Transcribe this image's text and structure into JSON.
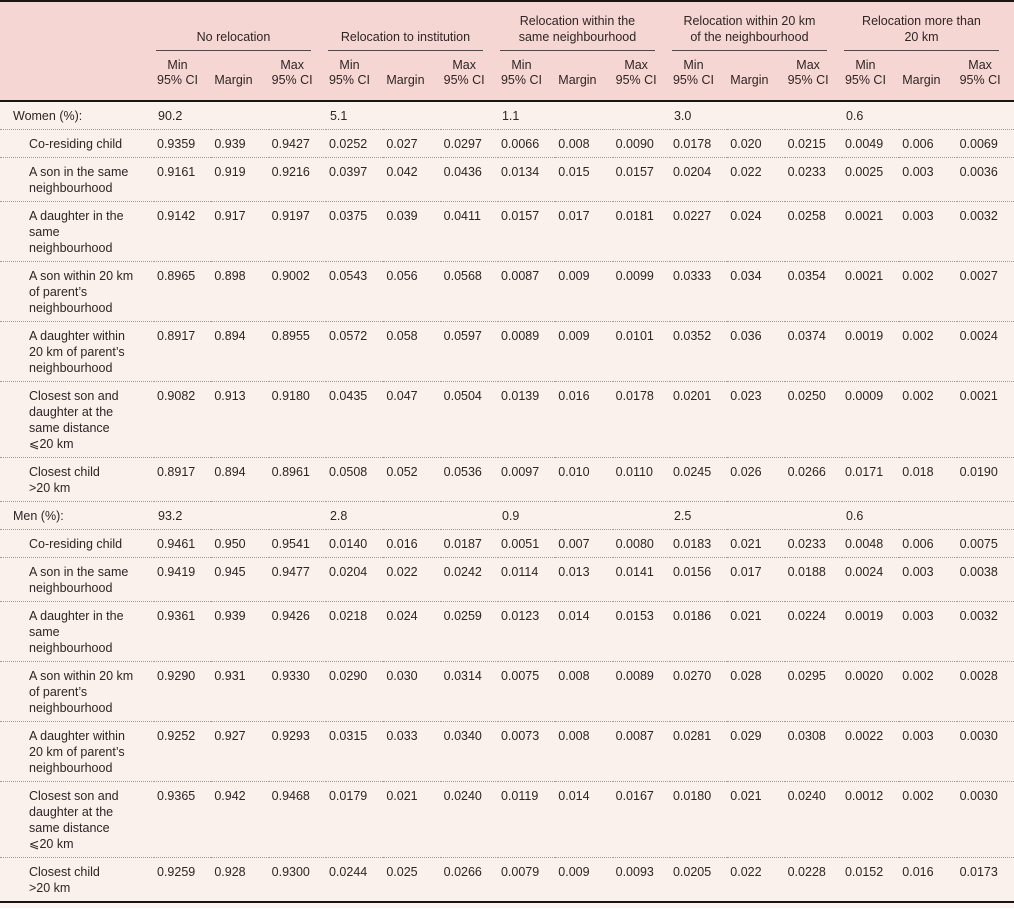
{
  "colors": {
    "header_background": "#f5d6d3",
    "body_background": "#faf0ec",
    "rule_black": "#1a1414",
    "group_underline": "#55484a",
    "row_separator_dotted": "#a8968f",
    "text": "#2e2524"
  },
  "table": {
    "column_groups": [
      {
        "label": "No relocation"
      },
      {
        "label": "Relocation to institution"
      },
      {
        "label": "Relocation within the\nsame neighbourhood"
      },
      {
        "label": "Relocation within 20 km\nof the neighbourhood"
      },
      {
        "label": "Relocation more than\n20 km"
      }
    ],
    "sub_columns": [
      {
        "lines": [
          "Min",
          "95% CI"
        ]
      },
      {
        "lines": [
          "Margin"
        ]
      },
      {
        "lines": [
          "Max",
          "95% CI"
        ]
      }
    ],
    "sections": [
      {
        "label": "Women (%):",
        "values": [
          "90.2",
          "5.1",
          "1.1",
          "3.0",
          "0.6"
        ],
        "rows": [
          {
            "label": "Co-residing child",
            "values": [
              "0.9359",
              "0.939",
              "0.9427",
              "0.0252",
              "0.027",
              "0.0297",
              "0.0066",
              "0.008",
              "0.0090",
              "0.0178",
              "0.020",
              "0.0215",
              "0.0049",
              "0.006",
              "0.0069"
            ]
          },
          {
            "label": "A son in the same\nneighbourhood",
            "values": [
              "0.9161",
              "0.919",
              "0.9216",
              "0.0397",
              "0.042",
              "0.0436",
              "0.0134",
              "0.015",
              "0.0157",
              "0.0204",
              "0.022",
              "0.0233",
              "0.0025",
              "0.003",
              "0.0036"
            ]
          },
          {
            "label": "A daughter in the\nsame\nneighbourhood",
            "values": [
              "0.9142",
              "0.917",
              "0.9197",
              "0.0375",
              "0.039",
              "0.0411",
              "0.0157",
              "0.017",
              "0.0181",
              "0.0227",
              "0.024",
              "0.0258",
              "0.0021",
              "0.003",
              "0.0032"
            ]
          },
          {
            "label": "A son within 20 km\nof parent’s\nneighbourhood",
            "values": [
              "0.8965",
              "0.898",
              "0.9002",
              "0.0543",
              "0.056",
              "0.0568",
              "0.0087",
              "0.009",
              "0.0099",
              "0.0333",
              "0.034",
              "0.0354",
              "0.0021",
              "0.002",
              "0.0027"
            ]
          },
          {
            "label": "A daughter within\n20 km of parent’s\nneighbourhood",
            "values": [
              "0.8917",
              "0.894",
              "0.8955",
              "0.0572",
              "0.058",
              "0.0597",
              "0.0089",
              "0.009",
              "0.0101",
              "0.0352",
              "0.036",
              "0.0374",
              "0.0019",
              "0.002",
              "0.0024"
            ]
          },
          {
            "label": "Closest son and\ndaughter at the\nsame distance\n⩽20 km",
            "values": [
              "0.9082",
              "0.913",
              "0.9180",
              "0.0435",
              "0.047",
              "0.0504",
              "0.0139",
              "0.016",
              "0.0178",
              "0.0201",
              "0.023",
              "0.0250",
              "0.0009",
              "0.002",
              "0.0021"
            ]
          },
          {
            "label": "Closest child\n>20 km",
            "values": [
              "0.8917",
              "0.894",
              "0.8961",
              "0.0508",
              "0.052",
              "0.0536",
              "0.0097",
              "0.010",
              "0.0110",
              "0.0245",
              "0.026",
              "0.0266",
              "0.0171",
              "0.018",
              "0.0190"
            ]
          }
        ]
      },
      {
        "label": "Men (%):",
        "values": [
          "93.2",
          "2.8",
          "0.9",
          "2.5",
          "0.6"
        ],
        "rows": [
          {
            "label": "Co-residing child",
            "values": [
              "0.9461",
              "0.950",
              "0.9541",
              "0.0140",
              "0.016",
              "0.0187",
              "0.0051",
              "0.007",
              "0.0080",
              "0.0183",
              "0.021",
              "0.0233",
              "0.0048",
              "0.006",
              "0.0075"
            ]
          },
          {
            "label": "A son in the same\nneighbourhood",
            "values": [
              "0.9419",
              "0.945",
              "0.9477",
              "0.0204",
              "0.022",
              "0.0242",
              "0.0114",
              "0.013",
              "0.0141",
              "0.0156",
              "0.017",
              "0.0188",
              "0.0024",
              "0.003",
              "0.0038"
            ]
          },
          {
            "label": "A daughter in the\nsame\nneighbourhood",
            "values": [
              "0.9361",
              "0.939",
              "0.9426",
              "0.0218",
              "0.024",
              "0.0259",
              "0.0123",
              "0.014",
              "0.0153",
              "0.0186",
              "0.021",
              "0.0224",
              "0.0019",
              "0.003",
              "0.0032"
            ]
          },
          {
            "label": "A son within 20 km\nof parent’s\nneighbourhood",
            "values": [
              "0.9290",
              "0.931",
              "0.9330",
              "0.0290",
              "0.030",
              "0.0314",
              "0.0075",
              "0.008",
              "0.0089",
              "0.0270",
              "0.028",
              "0.0295",
              "0.0020",
              "0.002",
              "0.0028"
            ]
          },
          {
            "label": "A daughter within\n20 km of parent’s\nneighbourhood",
            "values": [
              "0.9252",
              "0.927",
              "0.9293",
              "0.0315",
              "0.033",
              "0.0340",
              "0.0073",
              "0.008",
              "0.0087",
              "0.0281",
              "0.029",
              "0.0308",
              "0.0022",
              "0.003",
              "0.0030"
            ]
          },
          {
            "label": "Closest son and\ndaughter at the\nsame distance\n⩽20 km",
            "values": [
              "0.9365",
              "0.942",
              "0.9468",
              "0.0179",
              "0.021",
              "0.0240",
              "0.0119",
              "0.014",
              "0.0167",
              "0.0180",
              "0.021",
              "0.0240",
              "0.0012",
              "0.002",
              "0.0030"
            ]
          },
          {
            "label": "Closest child\n>20 km",
            "values": [
              "0.9259",
              "0.928",
              "0.9300",
              "0.0244",
              "0.025",
              "0.0266",
              "0.0079",
              "0.009",
              "0.0093",
              "0.0205",
              "0.022",
              "0.0228",
              "0.0152",
              "0.016",
              "0.0173"
            ]
          }
        ]
      }
    ]
  }
}
